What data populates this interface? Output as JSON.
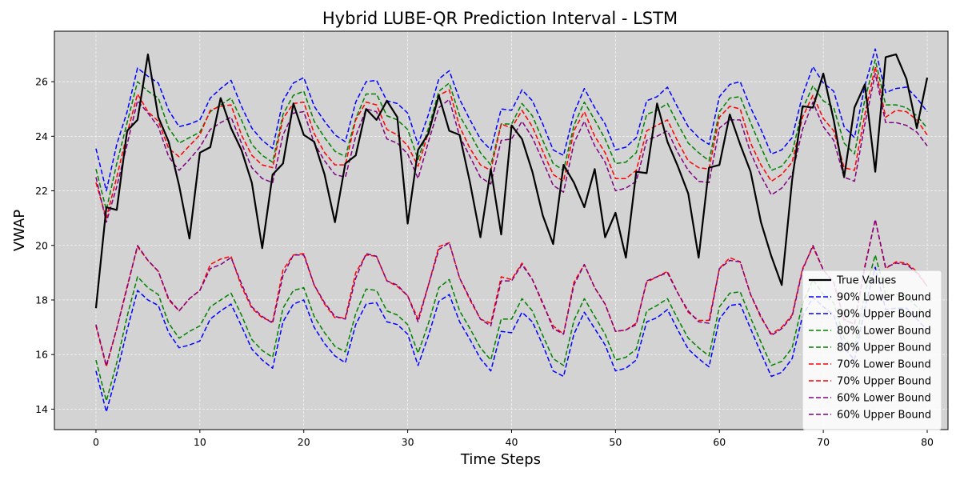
{
  "chart_data": {
    "type": "line",
    "title": "Hybrid LUBE-QR Prediction Interval - LSTM",
    "xlabel": "Time Steps",
    "ylabel": "VWAP",
    "xlim": [
      -4,
      82
    ],
    "ylim": [
      13.25,
      27.85
    ],
    "xticks": [
      0,
      10,
      20,
      30,
      40,
      50,
      60,
      70,
      80
    ],
    "yticks": [
      14,
      16,
      18,
      20,
      22,
      24,
      26
    ],
    "grid": true,
    "background": "#d3d3d3",
    "legend_position": "lower-right",
    "x": [
      0,
      1,
      2,
      3,
      4,
      5,
      6,
      7,
      8,
      9,
      10,
      11,
      12,
      13,
      14,
      15,
      16,
      17,
      18,
      19,
      20,
      21,
      22,
      23,
      24,
      25,
      26,
      27,
      28,
      29,
      30,
      31,
      32,
      33,
      34,
      35,
      36,
      37,
      38,
      39,
      40,
      41,
      42,
      43,
      44,
      45,
      46,
      47,
      48,
      49,
      50,
      51,
      52,
      53,
      54,
      55,
      56,
      57,
      58,
      59,
      60,
      61,
      62,
      63,
      64,
      65,
      66,
      67,
      68,
      69,
      70,
      71,
      72,
      73,
      74,
      75,
      76,
      77,
      78,
      79,
      80
    ],
    "series": [
      {
        "name": "True Values",
        "color": "#000000",
        "style": "solid",
        "values": [
          17.7,
          21.4,
          21.3,
          24.2,
          24.6,
          27.0,
          24.7,
          23.8,
          22.2,
          20.25,
          23.4,
          23.6,
          25.4,
          24.3,
          23.5,
          22.3,
          19.9,
          22.6,
          23.0,
          25.2,
          24.05,
          23.8,
          22.6,
          20.85,
          23.0,
          23.3,
          25.0,
          24.6,
          25.3,
          24.7,
          20.8,
          23.5,
          24.1,
          25.5,
          24.2,
          24.05,
          22.3,
          20.3,
          22.8,
          20.4,
          24.4,
          23.9,
          22.7,
          21.1,
          20.05,
          22.95,
          22.3,
          21.4,
          22.8,
          20.3,
          21.2,
          19.55,
          22.7,
          22.65,
          25.2,
          23.8,
          22.9,
          21.9,
          19.55,
          22.85,
          22.95,
          24.8,
          23.7,
          22.7,
          20.85,
          19.6,
          18.55,
          22.4,
          25.1,
          25.05,
          26.3,
          24.6,
          22.5,
          25.05,
          25.9,
          22.7,
          26.9,
          27.0,
          26.1,
          24.3,
          26.15
        ]
      },
      {
        "name": "90% Lower Bound",
        "color": "#0000ff",
        "style": "dashed",
        "values": [
          15.4,
          13.9,
          15.3,
          16.9,
          18.35,
          18.0,
          17.8,
          16.8,
          16.25,
          16.35,
          16.5,
          17.3,
          17.6,
          17.85,
          17.05,
          16.2,
          15.8,
          15.5,
          17.2,
          17.85,
          18.0,
          17.0,
          16.4,
          15.95,
          15.7,
          17.1,
          17.85,
          17.9,
          17.2,
          17.1,
          16.75,
          15.6,
          16.7,
          17.95,
          18.2,
          17.2,
          16.55,
          15.85,
          15.4,
          16.85,
          16.8,
          17.55,
          17.2,
          16.35,
          15.4,
          15.2,
          16.75,
          17.55,
          16.95,
          16.35,
          15.4,
          15.5,
          15.8,
          17.2,
          17.35,
          17.65,
          16.9,
          16.2,
          15.85,
          15.55,
          17.3,
          17.8,
          17.85,
          16.95,
          16.05,
          15.2,
          15.35,
          15.85,
          17.4,
          18.1,
          17.75,
          17.45,
          16.25,
          15.8,
          17.7,
          19.2,
          17.65,
          17.7,
          17.7,
          17.3,
          16.9
        ]
      },
      {
        "name": "90% Upper Bound",
        "color": "#0000ff",
        "style": "dashed",
        "values": [
          23.55,
          22.0,
          23.7,
          24.9,
          26.5,
          26.2,
          25.95,
          24.95,
          24.35,
          24.45,
          24.6,
          25.4,
          25.75,
          26.05,
          25.1,
          24.3,
          23.85,
          23.55,
          25.3,
          25.95,
          26.15,
          25.1,
          24.55,
          24.05,
          23.8,
          25.25,
          26.0,
          26.05,
          25.3,
          25.2,
          24.85,
          23.7,
          24.8,
          26.1,
          26.4,
          25.35,
          24.6,
          23.9,
          23.5,
          25.0,
          24.95,
          25.7,
          25.3,
          24.45,
          23.5,
          23.3,
          24.85,
          25.75,
          25.05,
          24.45,
          23.5,
          23.6,
          23.95,
          25.3,
          25.45,
          25.8,
          25.05,
          24.35,
          23.95,
          23.7,
          25.45,
          25.9,
          26.0,
          25.05,
          24.25,
          23.35,
          23.5,
          23.95,
          25.5,
          26.55,
          25.95,
          25.65,
          24.35,
          23.95,
          25.85,
          27.2,
          25.6,
          25.75,
          25.8,
          25.4,
          24.9
        ]
      },
      {
        "name": "80% Lower Bound",
        "color": "#008000",
        "style": "dashed",
        "values": [
          15.8,
          14.3,
          15.7,
          17.4,
          18.85,
          18.45,
          18.2,
          17.15,
          16.6,
          16.85,
          17.05,
          17.75,
          18.0,
          18.25,
          17.45,
          16.55,
          16.15,
          15.9,
          17.7,
          18.35,
          18.45,
          17.4,
          16.8,
          16.3,
          16.1,
          17.5,
          18.4,
          18.35,
          17.6,
          17.45,
          17.1,
          16.05,
          17.15,
          18.45,
          18.75,
          17.6,
          16.95,
          16.25,
          15.8,
          17.3,
          17.3,
          18.05,
          17.6,
          16.7,
          15.85,
          15.6,
          17.25,
          18.05,
          17.4,
          16.75,
          15.8,
          15.9,
          16.2,
          17.6,
          17.8,
          18.05,
          17.3,
          16.6,
          16.25,
          15.95,
          17.75,
          18.25,
          18.3,
          17.35,
          16.45,
          15.6,
          15.75,
          16.25,
          17.85,
          18.75,
          18.2,
          17.9,
          16.6,
          16.2,
          18.25,
          19.65,
          18.2,
          18.2,
          18.15,
          17.75,
          17.35
        ]
      },
      {
        "name": "80% Upper Bound",
        "color": "#008000",
        "style": "dashed",
        "values": [
          22.8,
          21.3,
          23.0,
          24.5,
          26.0,
          25.65,
          25.4,
          24.3,
          23.75,
          23.95,
          24.15,
          24.9,
          25.15,
          25.4,
          24.6,
          23.7,
          23.3,
          23.05,
          24.8,
          25.5,
          25.65,
          24.55,
          23.95,
          23.45,
          23.25,
          24.65,
          25.55,
          25.55,
          24.75,
          24.6,
          24.25,
          23.15,
          24.3,
          25.65,
          25.95,
          24.75,
          24.1,
          23.4,
          22.95,
          24.45,
          24.45,
          25.2,
          24.75,
          23.85,
          23.0,
          22.75,
          24.4,
          25.25,
          24.6,
          23.9,
          23.0,
          23.05,
          23.4,
          24.8,
          24.95,
          25.2,
          24.45,
          23.75,
          23.4,
          23.1,
          24.9,
          25.4,
          25.45,
          24.5,
          23.6,
          22.75,
          22.9,
          23.4,
          25.0,
          25.85,
          25.3,
          25.05,
          23.75,
          23.35,
          25.35,
          26.8,
          25.15,
          25.15,
          25.05,
          24.75,
          24.3
        ]
      },
      {
        "name": "70% Lower Bound",
        "color": "#ff0000",
        "style": "dashed",
        "values": [
          17.05,
          15.55,
          16.95,
          18.5,
          19.95,
          19.45,
          19.05,
          18.0,
          17.6,
          18.05,
          18.35,
          19.3,
          19.5,
          19.6,
          18.5,
          17.7,
          17.35,
          17.2,
          19.1,
          19.65,
          19.7,
          18.55,
          17.85,
          17.35,
          17.35,
          19.0,
          19.65,
          19.6,
          18.7,
          18.5,
          18.15,
          17.3,
          18.55,
          19.95,
          20.1,
          18.8,
          18.0,
          17.3,
          17.15,
          18.85,
          18.75,
          19.35,
          18.75,
          17.85,
          17.05,
          16.75,
          18.65,
          19.3,
          18.45,
          17.85,
          16.85,
          16.9,
          17.15,
          18.65,
          18.85,
          19.05,
          18.25,
          17.55,
          17.25,
          17.25,
          19.15,
          19.55,
          19.4,
          18.2,
          17.35,
          16.75,
          17.0,
          17.45,
          19.15,
          19.95,
          19.1,
          18.65,
          17.25,
          17.15,
          19.25,
          20.95,
          19.15,
          19.4,
          19.35,
          19.05,
          18.5
        ]
      },
      {
        "name": "70% Upper Bound",
        "color": "#ff0000",
        "style": "dashed",
        "values": [
          22.3,
          21.0,
          22.5,
          24.1,
          25.55,
          24.9,
          24.55,
          23.55,
          23.25,
          23.65,
          24.05,
          24.95,
          25.1,
          25.15,
          24.05,
          23.3,
          22.95,
          22.85,
          24.65,
          25.2,
          25.25,
          24.1,
          23.4,
          22.95,
          22.95,
          24.6,
          25.25,
          25.15,
          24.25,
          24.05,
          23.65,
          22.9,
          24.15,
          25.5,
          25.7,
          24.35,
          23.55,
          22.95,
          22.75,
          24.45,
          24.3,
          24.95,
          24.35,
          23.45,
          22.6,
          22.35,
          24.2,
          24.9,
          24.0,
          23.4,
          22.45,
          22.45,
          22.75,
          24.2,
          24.4,
          24.6,
          23.8,
          23.1,
          22.85,
          22.8,
          24.7,
          25.1,
          25.0,
          23.75,
          22.95,
          22.35,
          22.6,
          23.05,
          24.7,
          25.5,
          24.65,
          24.2,
          22.85,
          22.75,
          24.8,
          26.55,
          24.7,
          24.95,
          24.9,
          24.6,
          24.05
        ]
      },
      {
        "name": "60% Lower Bound",
        "color": "#800080",
        "style": "dashed",
        "values": [
          17.1,
          15.6,
          16.95,
          18.45,
          20.0,
          19.45,
          19.05,
          18.05,
          17.6,
          18.05,
          18.35,
          19.15,
          19.3,
          19.55,
          18.6,
          17.75,
          17.4,
          17.15,
          18.9,
          19.65,
          19.65,
          18.55,
          17.9,
          17.4,
          17.3,
          18.8,
          19.7,
          19.6,
          18.7,
          18.55,
          18.15,
          17.2,
          18.55,
          19.85,
          20.1,
          18.8,
          18.05,
          17.3,
          17.05,
          18.7,
          18.7,
          19.3,
          18.75,
          17.9,
          16.95,
          16.75,
          18.55,
          19.3,
          18.45,
          17.85,
          16.85,
          16.9,
          17.1,
          18.7,
          18.85,
          19.0,
          18.25,
          17.6,
          17.2,
          17.15,
          19.15,
          19.45,
          19.4,
          18.2,
          17.4,
          16.7,
          16.95,
          17.4,
          19.1,
          20.0,
          19.1,
          18.65,
          17.3,
          17.1,
          19.2,
          20.95,
          19.2,
          19.35,
          19.3,
          19.0,
          18.5
        ]
      },
      {
        "name": "60% Upper Bound",
        "color": "#800080",
        "style": "dashed",
        "values": [
          22.5,
          20.85,
          22.15,
          23.7,
          25.3,
          24.85,
          24.35,
          23.25,
          22.75,
          23.15,
          23.6,
          24.25,
          24.5,
          24.7,
          23.75,
          22.85,
          22.45,
          22.3,
          24.05,
          24.85,
          24.9,
          23.75,
          23.1,
          22.6,
          22.5,
          24.0,
          25.0,
          24.9,
          23.9,
          23.75,
          23.35,
          22.45,
          23.8,
          25.05,
          25.35,
          24.0,
          23.25,
          22.5,
          22.25,
          23.85,
          23.9,
          24.55,
          23.95,
          23.1,
          22.2,
          21.95,
          23.75,
          24.55,
          23.65,
          23.05,
          22.0,
          22.1,
          22.35,
          23.85,
          24.0,
          24.2,
          23.4,
          22.75,
          22.35,
          22.3,
          24.3,
          24.6,
          24.6,
          23.4,
          22.55,
          21.85,
          22.1,
          22.6,
          24.25,
          25.25,
          24.35,
          23.85,
          22.5,
          22.35,
          24.45,
          26.3,
          24.5,
          24.5,
          24.4,
          24.15,
          23.65
        ]
      }
    ]
  }
}
